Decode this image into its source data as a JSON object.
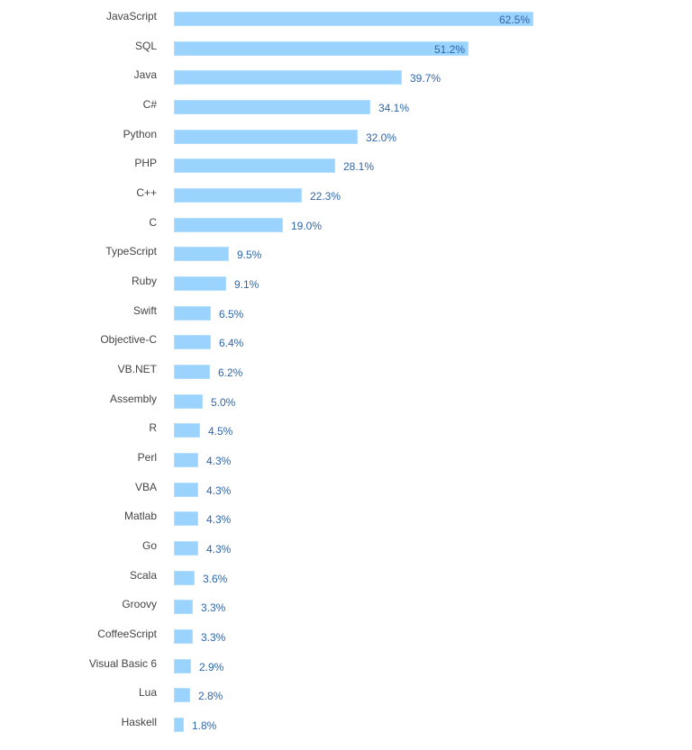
{
  "chart_data": {
    "type": "bar",
    "orientation": "horizontal",
    "title": "",
    "xlabel": "",
    "ylabel": "",
    "grid": false,
    "legend": null,
    "bar_color": "#99d3fe",
    "value_label_color": "#2f66a8",
    "category_label_color": "#444444",
    "xlim": [
      0,
      62.5
    ],
    "categories": [
      "JavaScript",
      "SQL",
      "Java",
      "C#",
      "Python",
      "PHP",
      "C++",
      "C",
      "TypeScript",
      "Ruby",
      "Swift",
      "Objective-C",
      "VB.NET",
      "Assembly",
      "R",
      "Perl",
      "VBA",
      "Matlab",
      "Go",
      "Scala",
      "Groovy",
      "CoffeeScript",
      "Visual Basic 6",
      "Lua",
      "Haskell"
    ],
    "values": [
      62.5,
      51.2,
      39.7,
      34.1,
      32.0,
      28.1,
      22.3,
      19.0,
      9.5,
      9.1,
      6.5,
      6.4,
      6.2,
      5.0,
      4.5,
      4.3,
      4.3,
      4.3,
      4.3,
      3.6,
      3.3,
      3.3,
      2.9,
      2.8,
      1.8
    ],
    "value_labels": [
      "62.5%",
      "51.2%",
      "39.7%",
      "34.1%",
      "32.0%",
      "28.1%",
      "22.3%",
      "19.0%",
      "9.5%",
      "9.1%",
      "6.5%",
      "6.4%",
      "6.2%",
      "5.0%",
      "4.5%",
      "4.3%",
      "4.3%",
      "4.3%",
      "4.3%",
      "3.6%",
      "3.3%",
      "3.3%",
      "2.9%",
      "2.8%",
      "1.8%"
    ]
  }
}
